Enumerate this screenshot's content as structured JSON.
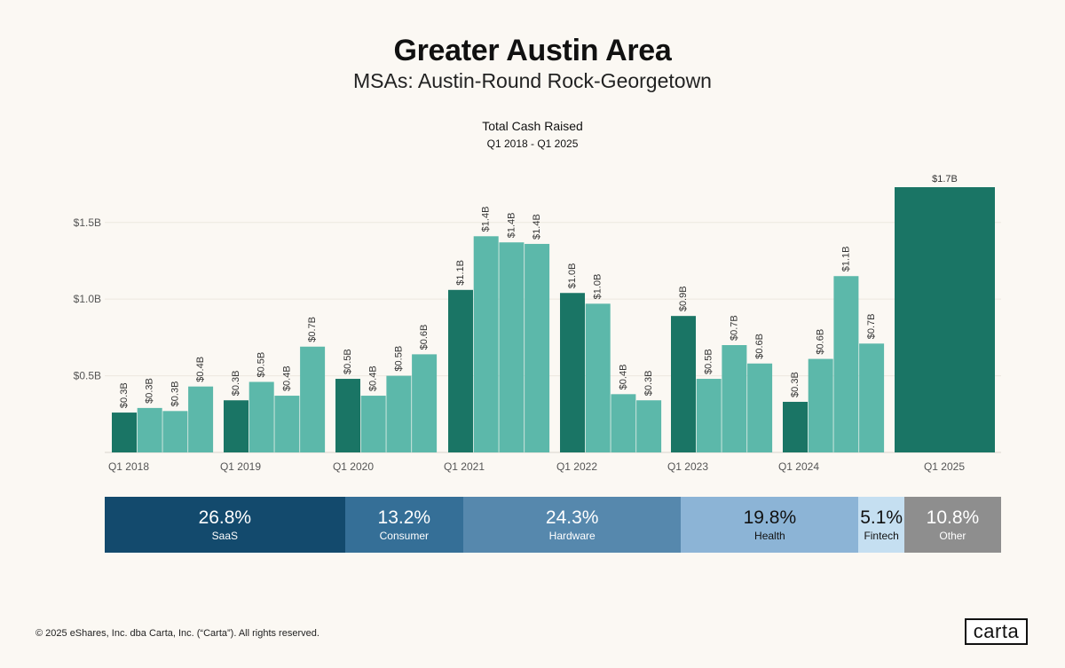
{
  "header": {
    "title": "Greater Austin Area",
    "subtitle": "MSAs: Austin-Round Rock-Georgetown"
  },
  "chart_data": {
    "type": "bar",
    "title": "Total Cash Raised",
    "subtitle": "Q1 2018 - Q1 2025",
    "ylim": [
      0,
      1.75
    ],
    "y_ticks": [
      {
        "value": 0.5,
        "label": "$0.5B"
      },
      {
        "value": 1.0,
        "label": "$1.0B"
      },
      {
        "value": 1.5,
        "label": "$1.5B"
      }
    ],
    "x_tick_labels": [
      "Q1 2018",
      "Q1 2019",
      "Q1 2020",
      "Q1 2021",
      "Q1 2022",
      "Q1 2023",
      "Q1 2024",
      "Q1 2025"
    ],
    "units": "$B",
    "colors": {
      "q1": "#1a7565",
      "other": "#5cb8aa"
    },
    "groups": [
      {
        "year": "2018",
        "bars": [
          {
            "quarter": "Q1",
            "value": 0.26,
            "label": "$0.3B"
          },
          {
            "quarter": "Q2",
            "value": 0.29,
            "label": "$0.3B"
          },
          {
            "quarter": "Q3",
            "value": 0.27,
            "label": "$0.3B"
          },
          {
            "quarter": "Q4",
            "value": 0.43,
            "label": "$0.4B"
          }
        ]
      },
      {
        "year": "2019",
        "bars": [
          {
            "quarter": "Q1",
            "value": 0.34,
            "label": "$0.3B"
          },
          {
            "quarter": "Q2",
            "value": 0.46,
            "label": "$0.5B"
          },
          {
            "quarter": "Q3",
            "value": 0.37,
            "label": "$0.4B"
          },
          {
            "quarter": "Q4",
            "value": 0.69,
            "label": "$0.7B"
          }
        ]
      },
      {
        "year": "2020",
        "bars": [
          {
            "quarter": "Q1",
            "value": 0.48,
            "label": "$0.5B"
          },
          {
            "quarter": "Q2",
            "value": 0.37,
            "label": "$0.4B"
          },
          {
            "quarter": "Q3",
            "value": 0.5,
            "label": "$0.5B"
          },
          {
            "quarter": "Q4",
            "value": 0.64,
            "label": "$0.6B"
          }
        ]
      },
      {
        "year": "2021",
        "bars": [
          {
            "quarter": "Q1",
            "value": 1.06,
            "label": "$1.1B"
          },
          {
            "quarter": "Q2",
            "value": 1.41,
            "label": "$1.4B"
          },
          {
            "quarter": "Q3",
            "value": 1.37,
            "label": "$1.4B"
          },
          {
            "quarter": "Q4",
            "value": 1.36,
            "label": "$1.4B"
          }
        ]
      },
      {
        "year": "2022",
        "bars": [
          {
            "quarter": "Q1",
            "value": 1.04,
            "label": "$1.0B"
          },
          {
            "quarter": "Q2",
            "value": 0.97,
            "label": "$1.0B"
          },
          {
            "quarter": "Q3",
            "value": 0.38,
            "label": "$0.4B"
          },
          {
            "quarter": "Q4",
            "value": 0.34,
            "label": "$0.3B"
          }
        ]
      },
      {
        "year": "2023",
        "bars": [
          {
            "quarter": "Q1",
            "value": 0.89,
            "label": "$0.9B"
          },
          {
            "quarter": "Q2",
            "value": 0.48,
            "label": "$0.5B"
          },
          {
            "quarter": "Q3",
            "value": 0.7,
            "label": "$0.7B"
          },
          {
            "quarter": "Q4",
            "value": 0.58,
            "label": "$0.6B"
          }
        ]
      },
      {
        "year": "2024",
        "bars": [
          {
            "quarter": "Q1",
            "value": 0.33,
            "label": "$0.3B"
          },
          {
            "quarter": "Q2",
            "value": 0.61,
            "label": "$0.6B"
          },
          {
            "quarter": "Q3",
            "value": 1.15,
            "label": "$1.1B"
          },
          {
            "quarter": "Q4",
            "value": 0.71,
            "label": "$0.7B"
          }
        ]
      },
      {
        "year": "2025",
        "bars": [
          {
            "quarter": "Q1",
            "value": 1.73,
            "label": "$1.7B"
          }
        ]
      }
    ]
  },
  "sectors": [
    {
      "name": "SaaS",
      "pct": "26.8%",
      "share": 26.8,
      "color": "#134a6d",
      "text_color": "#ffffff"
    },
    {
      "name": "Consumer",
      "pct": "13.2%",
      "share": 13.2,
      "color": "#356f97",
      "text_color": "#ffffff"
    },
    {
      "name": "Hardware",
      "pct": "24.3%",
      "share": 24.3,
      "color": "#5688ad",
      "text_color": "#ffffff"
    },
    {
      "name": "Health",
      "pct": "19.8%",
      "share": 19.8,
      "color": "#8cb4d6",
      "text_color": "#111111"
    },
    {
      "name": "Fintech",
      "pct": "5.1%",
      "share": 5.1,
      "color": "#c5dff1",
      "text_color": "#111111"
    },
    {
      "name": "Other",
      "pct": "10.8%",
      "share": 10.8,
      "color": "#8e8e8e",
      "text_color": "#ffffff"
    }
  ],
  "footer": {
    "copyright": "© 2025 eShares, Inc. dba Carta, Inc. (“Carta”). All rights reserved.",
    "logo_text": "carta"
  }
}
